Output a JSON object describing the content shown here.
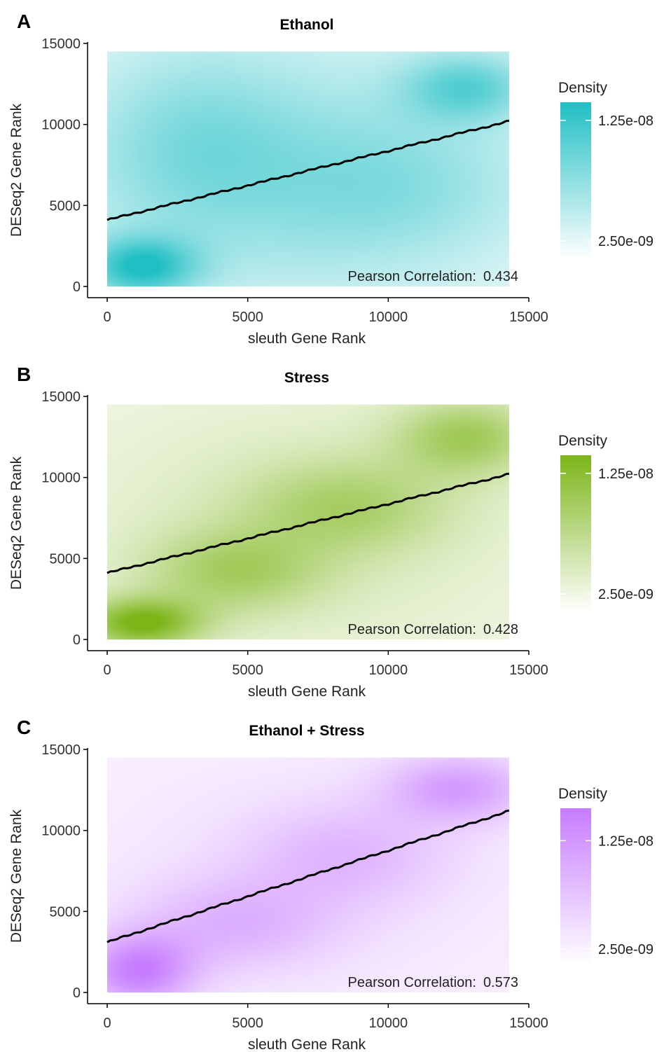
{
  "legend_title": "Density",
  "chart_data": [
    {
      "panel_letter": "A",
      "type": "heatmap",
      "title": "Ethanol",
      "xlabel": "sleuth Gene Rank",
      "ylabel": "DESeq2 Gene Rank",
      "xlim": [
        0,
        15000
      ],
      "ylim": [
        0,
        15000
      ],
      "x_ticks": [
        "0",
        "5000",
        "10000",
        "15000"
      ],
      "y_ticks": [
        "0",
        "5000",
        "10000",
        "15000"
      ],
      "data_extent": {
        "x": [
          0,
          14300
        ],
        "y": [
          0,
          14500
        ]
      },
      "density_color": "#1fbfc4",
      "legend_ticks": [
        "1.25e-08",
        "2.50e-09"
      ],
      "legend_tick_values": [
        1.25e-08,
        2.5e-09
      ],
      "legend_range": [
        1e-09,
        1.4e-08
      ],
      "density_hotspots": [
        {
          "x": 1200,
          "y": 1200,
          "sx": 1400,
          "sy": 1300,
          "w": 0.8
        },
        {
          "x": 12800,
          "y": 12300,
          "sx": 1600,
          "sy": 1500,
          "w": 0.55
        },
        {
          "x": 6500,
          "y": 7000,
          "sx": 5500,
          "sy": 5500,
          "w": 0.35
        },
        {
          "x": 3000,
          "y": 9000,
          "sx": 2500,
          "sy": 4000,
          "w": 0.25
        },
        {
          "x": 10500,
          "y": 6000,
          "sx": 3000,
          "sy": 3000,
          "w": 0.2
        }
      ],
      "fit_line": {
        "x": [
          0,
          14300
        ],
        "y": [
          4100,
          10200
        ]
      },
      "annotation": {
        "label": "Pearson Correlation:",
        "value": "0.434"
      }
    },
    {
      "panel_letter": "B",
      "type": "heatmap",
      "title": "Stress",
      "xlabel": "sleuth Gene Rank",
      "ylabel": "DESeq2 Gene Rank",
      "xlim": [
        0,
        15000
      ],
      "ylim": [
        0,
        15000
      ],
      "x_ticks": [
        "0",
        "5000",
        "10000",
        "15000"
      ],
      "y_ticks": [
        "0",
        "5000",
        "10000",
        "15000"
      ],
      "data_extent": {
        "x": [
          0,
          14300
        ],
        "y": [
          0,
          14500
        ]
      },
      "density_color": "#7cb518",
      "legend_ticks": [
        "1.25e-08",
        "2.50e-09"
      ],
      "legend_tick_values": [
        1.25e-08,
        2.5e-09
      ],
      "legend_range": [
        1e-09,
        1.4e-08
      ],
      "density_hotspots": [
        {
          "x": 1200,
          "y": 1000,
          "sx": 1500,
          "sy": 1100,
          "w": 0.85
        },
        {
          "x": 4500,
          "y": 4200,
          "sx": 2200,
          "sy": 1800,
          "w": 0.45
        },
        {
          "x": 8500,
          "y": 8200,
          "sx": 2500,
          "sy": 2000,
          "w": 0.4
        },
        {
          "x": 12800,
          "y": 12500,
          "sx": 1800,
          "sy": 1700,
          "w": 0.55
        },
        {
          "x": 7000,
          "y": 7000,
          "sx": 6000,
          "sy": 6000,
          "w": 0.18
        }
      ],
      "fit_line": {
        "x": [
          0,
          14300
        ],
        "y": [
          4100,
          10200
        ]
      },
      "annotation": {
        "label": "Pearson Correlation:",
        "value": "0.428"
      }
    },
    {
      "panel_letter": "C",
      "type": "heatmap",
      "title": "Ethanol + Stress",
      "xlabel": "sleuth Gene Rank",
      "ylabel": "DESeq2 Gene Rank",
      "xlim": [
        0,
        15000
      ],
      "ylim": [
        0,
        15000
      ],
      "x_ticks": [
        "0",
        "5000",
        "10000",
        "15000"
      ],
      "y_ticks": [
        "0",
        "5000",
        "10000",
        "15000"
      ],
      "data_extent": {
        "x": [
          0,
          14300
        ],
        "y": [
          0,
          14500
        ]
      },
      "density_color": "#c77cff",
      "legend_ticks": [
        "1.25e-08",
        "2.50e-09"
      ],
      "legend_tick_values": [
        1.25e-08,
        2.5e-09
      ],
      "legend_range": [
        1e-09,
        1.55e-08
      ],
      "density_hotspots": [
        {
          "x": 1100,
          "y": 1300,
          "sx": 1400,
          "sy": 1600,
          "w": 0.8
        },
        {
          "x": 4500,
          "y": 4200,
          "sx": 2500,
          "sy": 2000,
          "w": 0.4
        },
        {
          "x": 8500,
          "y": 8500,
          "sx": 2500,
          "sy": 2200,
          "w": 0.35
        },
        {
          "x": 12500,
          "y": 12600,
          "sx": 1800,
          "sy": 1500,
          "w": 0.6
        },
        {
          "x": 7000,
          "y": 7000,
          "sx": 6000,
          "sy": 6000,
          "w": 0.12
        }
      ],
      "fit_line": {
        "x": [
          0,
          14300
        ],
        "y": [
          3100,
          11200
        ]
      },
      "annotation": {
        "label": "Pearson Correlation:",
        "value": "0.573"
      }
    }
  ]
}
